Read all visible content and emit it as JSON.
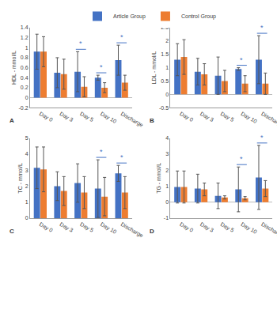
{
  "chart_data": [
    {
      "type": "bar",
      "panel": "A",
      "y_label": "HDL - mmol/L",
      "legend": "top",
      "categories": [
        "Day 0",
        "Day 3",
        "Day 5",
        "Day 10",
        "Discharge"
      ],
      "ylim": [
        -0.2,
        1.4
      ],
      "yticks": [
        -0.2,
        0,
        0.2,
        0.4,
        0.6,
        0.8,
        1,
        1.2,
        1.4
      ],
      "series": [
        {
          "name": "Article Group",
          "color": "#4472c4",
          "values": [
            0.92,
            0.5,
            0.52,
            0.4,
            0.75
          ],
          "errors": [
            0.35,
            0.3,
            0.4,
            0.05,
            0.3
          ]
        },
        {
          "name": "Control Group",
          "color": "#ed7d31",
          "values": [
            0.92,
            0.47,
            0.22,
            0.2,
            0.3
          ],
          "errors": [
            0.3,
            0.3,
            0.2,
            0.1,
            0.15
          ]
        }
      ],
      "annotations": [
        {
          "category": "Day 5",
          "text": "*"
        },
        {
          "category": "Day 10",
          "text": "*"
        },
        {
          "category": "Discharge",
          "text": "*"
        }
      ]
    },
    {
      "type": "bar",
      "panel": "B",
      "y_label": "LDL - mmol/L",
      "categories": [
        "Day 0",
        "Day 3",
        "Day 5",
        "Day 10",
        "Discharge"
      ],
      "ylim": [
        -0.5,
        2.5
      ],
      "yticks": [
        -0.5,
        0,
        0.5,
        1,
        1.5,
        2,
        2.5
      ],
      "series": [
        {
          "name": "Article Group",
          "color": "#4472c4",
          "values": [
            1.3,
            0.85,
            0.7,
            0.95,
            1.3
          ],
          "errors": [
            0.6,
            0.5,
            0.7,
            0.05,
            0.9
          ]
        },
        {
          "name": "Control Group",
          "color": "#ed7d31",
          "values": [
            1.4,
            0.75,
            0.5,
            0.4,
            0.4
          ],
          "errors": [
            0.65,
            0.4,
            0.4,
            0.3,
            0.4
          ]
        }
      ],
      "annotations": [
        {
          "category": "Day 10",
          "text": "*"
        },
        {
          "category": "Discharge",
          "text": "*"
        }
      ]
    },
    {
      "type": "bar",
      "panel": "C",
      "y_label": "TC - mmol/L",
      "categories": [
        "Day 0",
        "Day 3",
        "Day 5",
        "Day 10",
        "Discharge"
      ],
      "ylim": [
        0,
        5
      ],
      "yticks": [
        0,
        1,
        2,
        3,
        4,
        5
      ],
      "series": [
        {
          "name": "Article Group",
          "color": "#4472c4",
          "values": [
            3.15,
            2.0,
            2.2,
            1.85,
            2.8
          ],
          "errors": [
            1.3,
            0.9,
            1.2,
            1.8,
            0.5
          ]
        },
        {
          "name": "Control Group",
          "color": "#ed7d31",
          "values": [
            3.05,
            1.7,
            1.6,
            1.35,
            1.6
          ],
          "errors": [
            1.4,
            0.9,
            1.0,
            1.2,
            1.0
          ]
        }
      ],
      "annotations": [
        {
          "category": "Day 10",
          "text": "*"
        },
        {
          "category": "Discharge",
          "text": "*"
        }
      ]
    },
    {
      "type": "bar",
      "panel": "D",
      "y_label": "TG - mmol/L",
      "categories": [
        "Day 0",
        "Day 3",
        "Day 5",
        "Day 10",
        "Discharge"
      ],
      "ylim": [
        -1,
        4
      ],
      "yticks": [
        -1,
        0,
        1,
        2,
        3,
        4
      ],
      "series": [
        {
          "name": "Article Group",
          "color": "#4472c4",
          "values": [
            0.95,
            0.85,
            0.4,
            0.8,
            1.55
          ],
          "errors": [
            1.0,
            0.9,
            0.8,
            1.4,
            2.0
          ]
        },
        {
          "name": "Control Group",
          "color": "#ed7d31",
          "values": [
            0.95,
            0.8,
            0.3,
            0.25,
            0.85
          ],
          "errors": [
            1.0,
            0.4,
            0.1,
            0.1,
            0.5
          ]
        }
      ],
      "annotations": [
        {
          "category": "Day 10",
          "text": "*"
        },
        {
          "category": "Discharge",
          "text": "*"
        }
      ]
    }
  ]
}
